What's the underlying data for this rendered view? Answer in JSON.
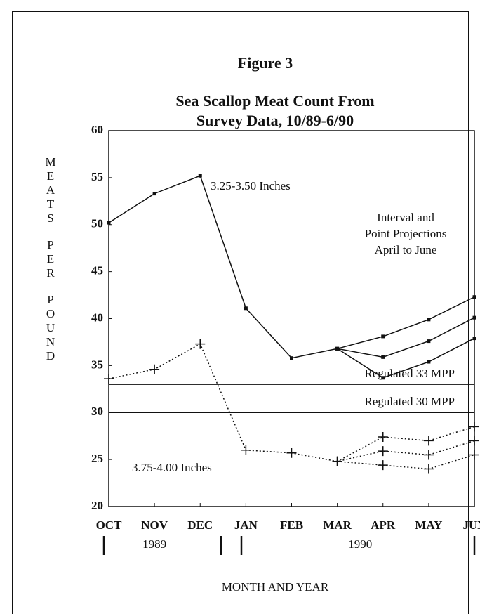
{
  "chart_data": {
    "type": "line",
    "figure_label": "Figure 3",
    "title": [
      "Sea Scallop Meat Count From",
      "Survey Data, 10/89-6/90"
    ],
    "ylabel": "MEATS PER POUND",
    "xlabel": "MONTH AND YEAR",
    "categories": [
      "OCT",
      "NOV",
      "DEC",
      "JAN",
      "FEB",
      "MAR",
      "APR",
      "MAY",
      "JUN"
    ],
    "years": [
      {
        "label": "1989",
        "from": 0,
        "to": 2
      },
      {
        "label": "1990",
        "from": 3,
        "to": 8
      }
    ],
    "ylim": [
      20,
      60
    ],
    "yticks": [
      20,
      25,
      30,
      35,
      40,
      45,
      50,
      55,
      60
    ],
    "series": [
      {
        "name": "3.25-3.50 Inches",
        "color": "#111111",
        "style": "solid",
        "marker": "square",
        "values": [
          50.2,
          53.3,
          55.2,
          41.1,
          35.8,
          36.8,
          35.9,
          37.6,
          40.1
        ],
        "lower": [
          null,
          null,
          null,
          null,
          null,
          36.8,
          33.7,
          35.4,
          37.9
        ],
        "upper": [
          null,
          null,
          null,
          null,
          null,
          36.8,
          38.1,
          39.9,
          42.3
        ]
      },
      {
        "name": "3.75-4.00 Inches",
        "color": "#111111",
        "style": "dotted",
        "marker": "plus",
        "values": [
          33.6,
          34.6,
          37.3,
          26.0,
          25.7,
          24.8,
          25.9,
          25.5,
          27.0
        ],
        "lower": [
          null,
          null,
          null,
          null,
          null,
          24.8,
          24.4,
          24.0,
          25.5
        ],
        "upper": [
          null,
          null,
          null,
          null,
          null,
          24.8,
          27.4,
          27.0,
          28.5
        ]
      }
    ],
    "reference_lines": [
      {
        "value": 33,
        "label": "Regulated 33 MPP"
      },
      {
        "value": 30,
        "label": "Regulated 30 MPP"
      }
    ],
    "annotation": [
      "Interval and",
      "Point Projections",
      "April to June"
    ]
  }
}
